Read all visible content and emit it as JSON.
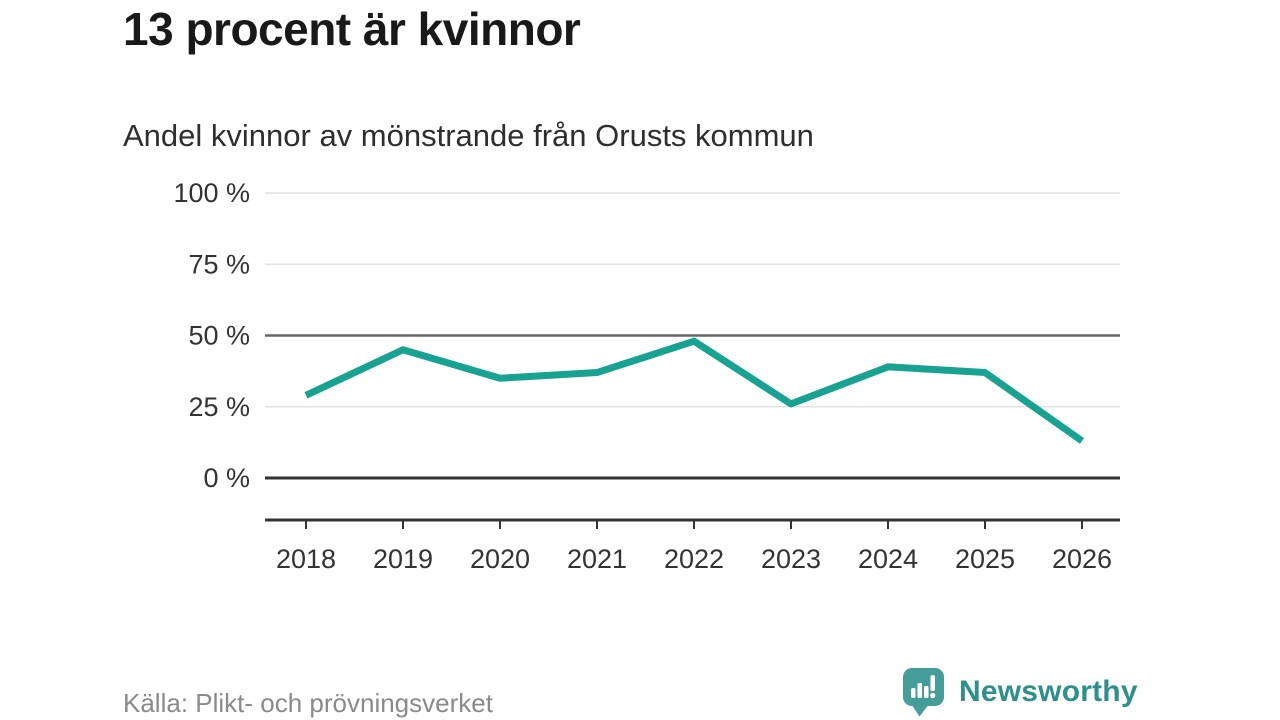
{
  "header": {
    "title": "13 procent är kvinnor",
    "subtitle": "Andel kvinnor av mönstrande från Orusts kommun"
  },
  "footer": {
    "source": "Källa: Plikt- och prövningsverket",
    "brand": "Newsworthy"
  },
  "icons": {
    "logo": "speech-bubble-bar-chart"
  },
  "colors": {
    "line": "#17a291",
    "brand_icon": "#459d99",
    "brand_text": "#2e8f8b",
    "grid_light": "#e2e2e2",
    "grid_mid": "#666666",
    "axis_dark": "#333333",
    "title_text": "#191919",
    "tick_label": "#333333",
    "source_text": "#8a8a8a"
  },
  "chart_data": {
    "type": "line",
    "title": "13 procent är kvinnor",
    "subtitle": "Andel kvinnor av mönstrande från Orusts kommun",
    "x": [
      2018,
      2019,
      2020,
      2021,
      2022,
      2023,
      2024,
      2025,
      2026
    ],
    "series": [
      {
        "name": "Andel kvinnor av mönstrande",
        "values": [
          29,
          45,
          35,
          37,
          48,
          26,
          39,
          37,
          13
        ]
      }
    ],
    "xlabel": "",
    "ylabel": "",
    "ylim": [
      0,
      100
    ],
    "yticks": [
      0,
      25,
      50,
      75,
      100
    ],
    "ytick_format": "{v} %",
    "grid": "horizontal",
    "emphasized_gridlines": [
      0,
      50
    ],
    "legend": "none",
    "source": "Källa: Plikt- och prövningsverket"
  }
}
